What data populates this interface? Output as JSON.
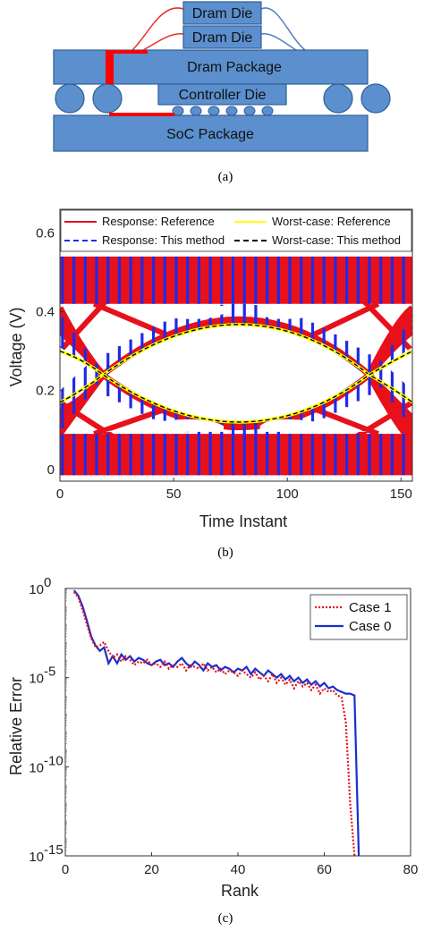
{
  "figure_a": {
    "caption": "(a)",
    "labels": {
      "dram_die_top": "Dram Die",
      "dram_die_bottom": "Dram Die",
      "dram_package": "Dram Package",
      "controller_die": "Controller Die",
      "soc_package": "SoC Package"
    },
    "colors": {
      "block_fill": "#5b8fcd",
      "block_stroke": "#2f5f99",
      "wire_red": "#e8302a",
      "wire_blue": "#4f7fc4",
      "trace_red": "#ff0000"
    }
  },
  "chart_data": [
    {
      "type": "line",
      "panel": "(b)",
      "caption": "(b)",
      "xlabel": "Time Instant",
      "ylabel": "Voltage (V)",
      "xlim": [
        0,
        155
      ],
      "ylim": [
        -0.03,
        0.66
      ],
      "xticks": [
        0,
        50,
        100,
        150
      ],
      "yticks": [
        0,
        0.2,
        0.4,
        0.6
      ],
      "ytick_labels": [
        "0",
        "0.2",
        "0.4",
        "0.6"
      ],
      "grid": false,
      "legend_position": "top",
      "series": [
        {
          "name": "Response: Reference",
          "color": "#e8101a",
          "style": "solid"
        },
        {
          "name": "Worst-case: Reference",
          "color": "#ffff00",
          "style": "solid"
        },
        {
          "name": "Response: This method",
          "color": "#1f2ae8",
          "style": "dashed"
        },
        {
          "name": "Worst-case: This method",
          "color": "#000000",
          "style": "dashed"
        }
      ],
      "eye": {
        "period": 5,
        "high_band": [
          0.42,
          0.54
        ],
        "low_band": [
          -0.015,
          0.09
        ],
        "eye_upper_peak": [
          80,
          0.37
        ],
        "eye_lower_trough": [
          80,
          0.125
        ],
        "crossing_left": [
          19,
          0.24
        ],
        "crossing_right": [
          136,
          0.24
        ],
        "edge_values": [
          0.17,
          0.3
        ]
      }
    },
    {
      "type": "line",
      "panel": "(c)",
      "caption": "(c)",
      "xlabel": "Rank",
      "ylabel": "Relative Error",
      "yscale": "log",
      "xlim": [
        0,
        80
      ],
      "ylim_exponent": [
        -15,
        0
      ],
      "xticks": [
        0,
        20,
        40,
        60,
        80
      ],
      "xtick_labels": [
        "0",
        "20",
        "40",
        "60",
        "80"
      ],
      "ytick_exponents": [
        0,
        -5,
        -10,
        -15
      ],
      "ytick_base": "10",
      "ytick_exp_labels": [
        "0",
        "-5",
        "-10",
        "-15"
      ],
      "grid": false,
      "legend_position": "top-right",
      "series": [
        {
          "name": "Case 1",
          "color": "#e8101a",
          "style": "dotted",
          "x": [
            2,
            3,
            4,
            5,
            6,
            7,
            8,
            9,
            10,
            11,
            12,
            13,
            14,
            15,
            16,
            17,
            18,
            19,
            20,
            21,
            22,
            23,
            24,
            25,
            26,
            27,
            28,
            29,
            30,
            31,
            32,
            33,
            34,
            35,
            36,
            37,
            38,
            39,
            40,
            41,
            42,
            43,
            44,
            45,
            46,
            47,
            48,
            49,
            50,
            51,
            52,
            53,
            54,
            55,
            56,
            57,
            58,
            59,
            60,
            61,
            62,
            63,
            64,
            65,
            66,
            67
          ],
          "log10_y": [
            -0.2,
            -0.5,
            -1.2,
            -2.0,
            -2.8,
            -3.3,
            -3.2,
            -3.0,
            -3.5,
            -3.9,
            -3.7,
            -4.1,
            -3.8,
            -4.0,
            -4.3,
            -4.1,
            -4.2,
            -4.0,
            -4.3,
            -4.2,
            -4.4,
            -4.1,
            -4.5,
            -4.3,
            -4.4,
            -4.2,
            -4.6,
            -4.3,
            -4.4,
            -4.5,
            -4.2,
            -4.6,
            -4.4,
            -4.7,
            -4.5,
            -4.8,
            -4.6,
            -4.7,
            -4.9,
            -4.6,
            -4.8,
            -5.0,
            -4.7,
            -5.1,
            -4.9,
            -5.2,
            -4.8,
            -5.3,
            -5.0,
            -5.4,
            -5.1,
            -5.6,
            -5.2,
            -5.5,
            -5.3,
            -5.7,
            -5.4,
            -5.9,
            -5.6,
            -5.8,
            -5.7,
            -6.0,
            -6.1,
            -7.5,
            -12.0,
            -15.0
          ]
        },
        {
          "name": "Case 0",
          "color": "#1a2fd0",
          "style": "solid",
          "x": [
            2,
            3,
            4,
            5,
            6,
            7,
            8,
            9,
            10,
            11,
            12,
            13,
            14,
            15,
            16,
            17,
            18,
            19,
            20,
            21,
            22,
            23,
            24,
            25,
            26,
            27,
            28,
            29,
            30,
            31,
            32,
            33,
            34,
            35,
            36,
            37,
            38,
            39,
            40,
            41,
            42,
            43,
            44,
            45,
            46,
            47,
            48,
            49,
            50,
            51,
            52,
            53,
            54,
            55,
            56,
            57,
            58,
            59,
            60,
            61,
            62,
            63,
            64,
            65,
            66,
            67,
            68
          ],
          "log10_y": [
            -0.1,
            -0.4,
            -1.0,
            -1.8,
            -2.7,
            -3.2,
            -3.5,
            -3.3,
            -4.2,
            -3.8,
            -4.2,
            -3.7,
            -4.0,
            -3.8,
            -4.1,
            -3.9,
            -4.0,
            -4.2,
            -4.3,
            -4.1,
            -4.0,
            -4.3,
            -4.2,
            -4.4,
            -4.1,
            -3.9,
            -4.2,
            -4.4,
            -4.1,
            -4.3,
            -4.6,
            -4.2,
            -4.4,
            -4.3,
            -4.6,
            -4.4,
            -4.5,
            -4.7,
            -4.5,
            -4.6,
            -4.4,
            -4.8,
            -4.5,
            -4.7,
            -4.9,
            -4.6,
            -4.8,
            -5.0,
            -4.8,
            -5.1,
            -4.9,
            -5.2,
            -5.0,
            -5.3,
            -5.1,
            -5.4,
            -5.2,
            -5.5,
            -5.3,
            -5.6,
            -5.5,
            -5.7,
            -5.8,
            -5.9,
            -5.9,
            -6.0,
            -15.0
          ]
        }
      ]
    }
  ]
}
